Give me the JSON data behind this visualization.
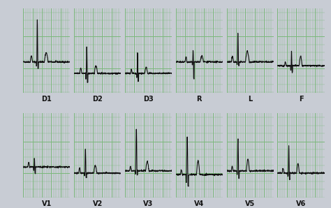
{
  "panel_bg": "#c8dab8",
  "grid_color": "#7ab87a",
  "ecg_color": "#111111",
  "label_color": "#111111",
  "outer_bg": "#c8ccd4",
  "labels_row1": [
    "D1",
    "D2",
    "D3",
    "R",
    "L",
    "F"
  ],
  "labels_row2": [
    "V1",
    "V2",
    "V3",
    "V4",
    "V5",
    "V6"
  ],
  "figsize": [
    4.74,
    2.98
  ],
  "dpi": 100
}
